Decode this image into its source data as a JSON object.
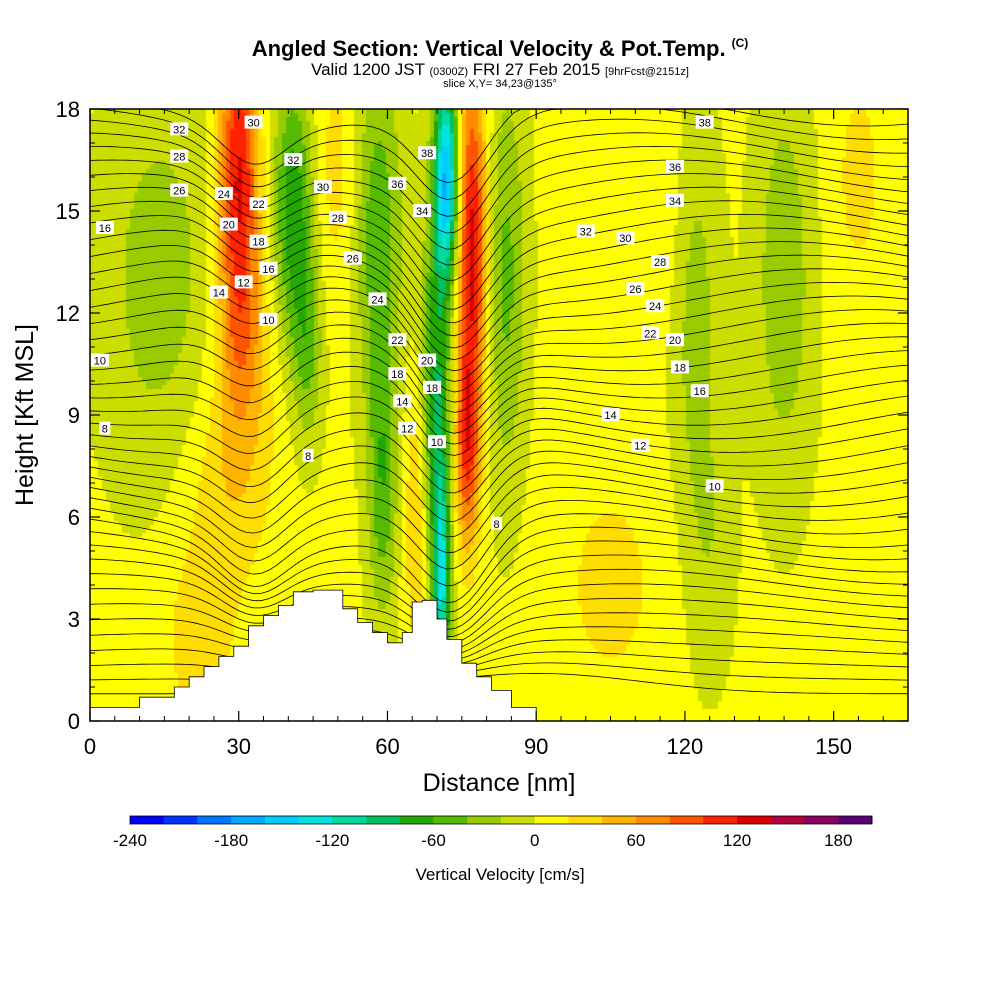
{
  "header": {
    "title": "Angled Section: Vertical Velocity & Pot.Temp.",
    "title_tag": "(C)",
    "valid_prefix": "Valid 1200 JST",
    "valid_zulu": "(0300Z)",
    "valid_date": "FRI 27 Feb 2015",
    "valid_fcst": "[9hrFcst@2151z]",
    "slice": "slice X,Y= 34,23@135°"
  },
  "chart_data": {
    "type": "heatmap",
    "title": "Angled Section: Vertical Velocity & Pot.Temp.",
    "xlabel": "Distance [nm]",
    "ylabel": "Height [Kft MSL]",
    "xlim": [
      0,
      165
    ],
    "ylim": [
      0,
      18
    ],
    "x_ticks": [
      0,
      30,
      60,
      90,
      120,
      150
    ],
    "y_ticks": [
      0,
      3,
      6,
      9,
      12,
      15,
      18
    ],
    "colorbar": {
      "label": "Vertical Velocity [cm/s]",
      "range": [
        -240,
        200
      ],
      "ticks": [
        -240,
        -180,
        -120,
        -60,
        0,
        60,
        120,
        180
      ],
      "colors": [
        "#0000ff",
        "#0033ff",
        "#0077ff",
        "#00aaff",
        "#00ccff",
        "#00e5e0",
        "#00d9a0",
        "#00c060",
        "#22a800",
        "#55bb00",
        "#99cc00",
        "#ccdd00",
        "#ffff00",
        "#ffdd00",
        "#ffb400",
        "#ff8c00",
        "#ff5500",
        "#ff2200",
        "#dd0000",
        "#b4003c",
        "#8c0064",
        "#5a0078"
      ]
    },
    "vertical_velocity_cm_s": {
      "background": 5,
      "features": [
        {
          "x": 30,
          "y": 16,
          "wx": 4,
          "wy": 5,
          "value": 120
        },
        {
          "x": 31,
          "y": 11,
          "wx": 6,
          "wy": 3,
          "value": 40
        },
        {
          "x": 28,
          "y": 7,
          "wx": 9,
          "wy": 3,
          "value": 30
        },
        {
          "x": 22,
          "y": 2.5,
          "wx": 8,
          "wy": 3,
          "value": 25
        },
        {
          "x": 14,
          "y": 13,
          "wx": 12,
          "wy": 6,
          "value": -35
        },
        {
          "x": 41,
          "y": 15,
          "wx": 4,
          "wy": 4,
          "value": -80
        },
        {
          "x": 44,
          "y": 11,
          "wx": 3,
          "wy": 3,
          "value": -45
        },
        {
          "x": 50,
          "y": 16,
          "wx": 5,
          "wy": 4,
          "value": 25
        },
        {
          "x": 58,
          "y": 14.5,
          "wx": 5,
          "wy": 5,
          "value": -60
        },
        {
          "x": 59,
          "y": 7,
          "wx": 3,
          "wy": 4,
          "value": -60
        },
        {
          "x": 66,
          "y": 6,
          "wx": 2.5,
          "wy": 4,
          "value": 40
        },
        {
          "x": 72,
          "y": 16,
          "wx": 2.5,
          "wy": 3,
          "value": -160
        },
        {
          "x": 70,
          "y": 9,
          "wx": 3,
          "wy": 6,
          "value": -90
        },
        {
          "x": 71,
          "y": 4,
          "wx": 1.6,
          "wy": 3,
          "value": -100
        },
        {
          "x": 77,
          "y": 14,
          "wx": 3,
          "wy": 5,
          "value": 125
        },
        {
          "x": 76,
          "y": 8,
          "wx": 2.5,
          "wy": 3,
          "value": 90
        },
        {
          "x": 84,
          "y": 13,
          "wx": 4,
          "wy": 6,
          "value": -50
        },
        {
          "x": 105,
          "y": 4,
          "wx": 12,
          "wy": 4,
          "value": 20
        },
        {
          "x": 115,
          "y": 15,
          "wx": 6,
          "wy": 4,
          "value": 15
        },
        {
          "x": 122,
          "y": 12,
          "wx": 5,
          "wy": 6,
          "value": -35
        },
        {
          "x": 125,
          "y": 5,
          "wx": 5,
          "wy": 4,
          "value": -20
        },
        {
          "x": 140,
          "y": 13,
          "wx": 6,
          "wy": 6,
          "value": -40
        },
        {
          "x": 155,
          "y": 16,
          "wx": 6,
          "wy": 4,
          "value": 20
        }
      ]
    },
    "terrain_kft": [
      [
        0,
        0.4
      ],
      [
        10,
        0.7
      ],
      [
        17,
        1.0
      ],
      [
        20,
        1.3
      ],
      [
        23,
        1.6
      ],
      [
        26,
        1.9
      ],
      [
        29,
        2.2
      ],
      [
        32,
        2.8
      ],
      [
        35,
        3.1
      ],
      [
        38,
        3.4
      ],
      [
        41,
        3.8
      ],
      [
        45,
        3.85
      ],
      [
        51,
        3.3
      ],
      [
        54,
        2.9
      ],
      [
        57,
        2.6
      ],
      [
        60,
        2.3
      ],
      [
        63,
        2.6
      ],
      [
        65,
        3.5
      ],
      [
        67,
        3.55
      ],
      [
        70,
        3.0
      ],
      [
        72,
        2.4
      ],
      [
        75,
        1.7
      ],
      [
        78,
        1.3
      ],
      [
        81,
        0.9
      ],
      [
        85,
        0.4
      ],
      [
        90,
        0.2
      ]
    ],
    "potential_temperature_contours_c": {
      "labels": [
        {
          "x": 2,
          "y": 10.6,
          "value": "10"
        },
        {
          "x": 3,
          "y": 8.6,
          "value": "8"
        },
        {
          "x": 3,
          "y": 14.5,
          "value": "16"
        },
        {
          "x": 18,
          "y": 17.4,
          "value": "32"
        },
        {
          "x": 18,
          "y": 16.6,
          "value": "28"
        },
        {
          "x": 18,
          "y": 15.6,
          "value": "26"
        },
        {
          "x": 27,
          "y": 15.5,
          "value": "24"
        },
        {
          "x": 28,
          "y": 14.6,
          "value": "20"
        },
        {
          "x": 26,
          "y": 12.6,
          "value": "14"
        },
        {
          "x": 31,
          "y": 12.9,
          "value": "12"
        },
        {
          "x": 33,
          "y": 17.6,
          "value": "30"
        },
        {
          "x": 34,
          "y": 15.2,
          "value": "22"
        },
        {
          "x": 34,
          "y": 14.1,
          "value": "18"
        },
        {
          "x": 36,
          "y": 13.3,
          "value": "16"
        },
        {
          "x": 36,
          "y": 11.8,
          "value": "10"
        },
        {
          "x": 41,
          "y": 16.5,
          "value": "32"
        },
        {
          "x": 47,
          "y": 15.7,
          "value": "30"
        },
        {
          "x": 50,
          "y": 14.8,
          "value": "28"
        },
        {
          "x": 53,
          "y": 13.6,
          "value": "26"
        },
        {
          "x": 58,
          "y": 12.4,
          "value": "24"
        },
        {
          "x": 62,
          "y": 11.2,
          "value": "22"
        },
        {
          "x": 62,
          "y": 10.2,
          "value": "18"
        },
        {
          "x": 63,
          "y": 9.4,
          "value": "14"
        },
        {
          "x": 64,
          "y": 8.6,
          "value": "12"
        },
        {
          "x": 62,
          "y": 15.8,
          "value": "36"
        },
        {
          "x": 67,
          "y": 15.0,
          "value": "34"
        },
        {
          "x": 68,
          "y": 16.7,
          "value": "38"
        },
        {
          "x": 68,
          "y": 10.6,
          "value": "20"
        },
        {
          "x": 69,
          "y": 9.8,
          "value": "18"
        },
        {
          "x": 70,
          "y": 8.2,
          "value": "10"
        },
        {
          "x": 44,
          "y": 7.8,
          "value": "8"
        },
        {
          "x": 82,
          "y": 5.8,
          "value": "8"
        },
        {
          "x": 100,
          "y": 14.4,
          "value": "32"
        },
        {
          "x": 108,
          "y": 14.2,
          "value": "30"
        },
        {
          "x": 115,
          "y": 13.5,
          "value": "28"
        },
        {
          "x": 110,
          "y": 12.7,
          "value": "26"
        },
        {
          "x": 114,
          "y": 12.2,
          "value": "24"
        },
        {
          "x": 113,
          "y": 11.4,
          "value": "22"
        },
        {
          "x": 118,
          "y": 11.2,
          "value": "20"
        },
        {
          "x": 119,
          "y": 10.4,
          "value": "18"
        },
        {
          "x": 123,
          "y": 9.7,
          "value": "16"
        },
        {
          "x": 105,
          "y": 9.0,
          "value": "14"
        },
        {
          "x": 111,
          "y": 8.1,
          "value": "12"
        },
        {
          "x": 126,
          "y": 6.9,
          "value": "10"
        },
        {
          "x": 124,
          "y": 17.6,
          "value": "38"
        },
        {
          "x": 118,
          "y": 16.3,
          "value": "36"
        },
        {
          "x": 118,
          "y": 15.3,
          "value": "34"
        }
      ]
    }
  }
}
